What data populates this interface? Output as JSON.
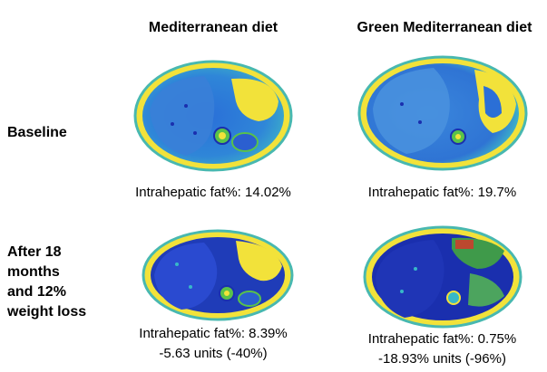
{
  "columns": {
    "mediterranean": "Mediterranean diet",
    "green_mediterranean": "Green Mediterranean diet"
  },
  "rows": {
    "baseline": "Baseline",
    "after": [
      "After 18",
      "months",
      "and 12%",
      "weight loss"
    ]
  },
  "captions": {
    "med_baseline": "Intrahepatic fat%: 14.02%",
    "green_baseline": "Intrahepatic fat%: 19.7%",
    "med_after": "Intrahepatic fat%: 8.39%",
    "med_after_change": "-5.63 units (-40%)",
    "green_after": "Intrahepatic fat%: 0.75%",
    "green_after_change": "-18.93% units (-96%)"
  },
  "colors": {
    "background": "#ffffff",
    "scan_outer_fat": "#f2e23a",
    "scan_tissue_blue": "#2b6fd6",
    "scan_deep_blue": "#1a2fae",
    "scan_cyan": "#37b8c8",
    "scan_green": "#53c24a",
    "scan_red_spot": "#d23a2a"
  }
}
